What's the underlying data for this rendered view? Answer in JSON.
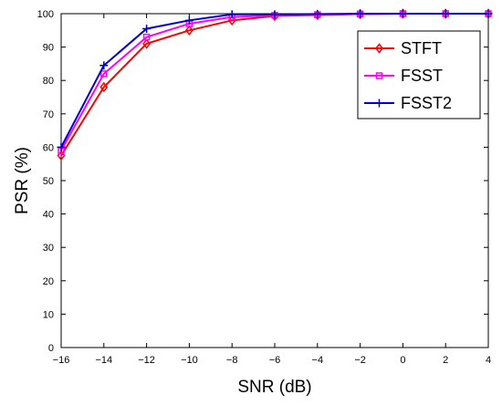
{
  "chart_data": {
    "type": "line",
    "title": "",
    "xlabel": "SNR (dB)",
    "ylabel": "PSR (%)",
    "xlim": [
      -16,
      4
    ],
    "ylim": [
      0,
      100
    ],
    "x_ticks": [
      -16,
      -14,
      -12,
      -10,
      -8,
      -6,
      -4,
      -2,
      0,
      2,
      4
    ],
    "x_tick_labels": [
      "−16",
      "−14",
      "−12",
      "−10",
      "−8",
      "−6",
      "−4",
      "−2",
      "0",
      "2",
      "4"
    ],
    "y_ticks": [
      0,
      10,
      20,
      30,
      40,
      50,
      60,
      70,
      80,
      90,
      100
    ],
    "y_tick_labels": [
      "0",
      "10",
      "20",
      "30",
      "40",
      "50",
      "60",
      "70",
      "80",
      "90",
      "100"
    ],
    "grid": false,
    "legend_position": "top-right",
    "x": [
      -16,
      -14,
      -12,
      -10,
      -8,
      -6,
      -4,
      -2,
      0,
      2,
      4
    ],
    "series": [
      {
        "name": "STFT",
        "color": "#ff0000",
        "marker": "diamond",
        "values": [
          57.5,
          78,
          91,
          95,
          98,
          99.3,
          99.6,
          99.9,
          100,
          100,
          100
        ]
      },
      {
        "name": "FSST",
        "color": "#ff00ff",
        "marker": "square",
        "values": [
          59,
          82,
          93,
          97,
          99,
          99.5,
          99.7,
          99.9,
          100,
          100,
          100
        ]
      },
      {
        "name": "FSST2",
        "color": "#0000cc",
        "marker": "plus",
        "values": [
          60,
          84.5,
          95.5,
          98,
          99.8,
          99.8,
          99.9,
          100,
          100,
          100,
          100
        ]
      }
    ]
  }
}
